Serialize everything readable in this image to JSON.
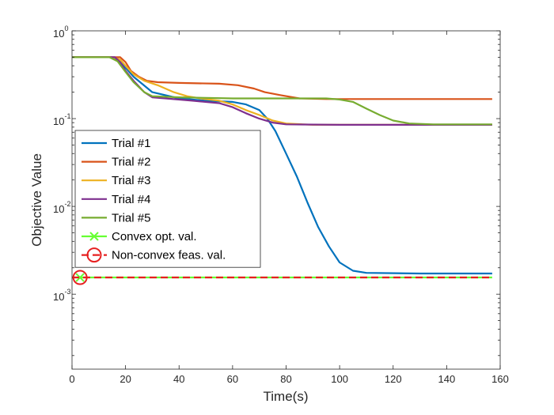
{
  "chart_data": {
    "type": "line",
    "xlabel": "Time(s)",
    "ylabel": "Objective Value",
    "xlim": [
      0,
      160
    ],
    "ylim": [
      0.00014,
      1
    ],
    "yscale": "log",
    "x_ticks": [
      0,
      20,
      40,
      60,
      80,
      100,
      120,
      140,
      160
    ],
    "y_ticks": [
      {
        "value": 0.001,
        "base": "10",
        "exp": "-3"
      },
      {
        "value": 0.01,
        "base": "10",
        "exp": "-2"
      },
      {
        "value": 0.1,
        "base": "10",
        "exp": "-1"
      },
      {
        "value": 1,
        "base": "10",
        "exp": "0"
      }
    ],
    "grid": false,
    "legend_position": "middle-left",
    "series": [
      {
        "name": "Trial #1",
        "color": "#0072BD",
        "style": "solid",
        "points": [
          [
            0,
            0.5
          ],
          [
            15,
            0.5
          ],
          [
            18,
            0.44
          ],
          [
            20,
            0.38
          ],
          [
            23,
            0.3
          ],
          [
            30,
            0.2
          ],
          [
            40,
            0.17
          ],
          [
            50,
            0.16
          ],
          [
            60,
            0.155
          ],
          [
            65,
            0.145
          ],
          [
            70,
            0.125
          ],
          [
            73,
            0.1
          ],
          [
            76,
            0.072
          ],
          [
            80,
            0.04
          ],
          [
            84,
            0.022
          ],
          [
            88,
            0.011
          ],
          [
            92,
            0.0058
          ],
          [
            96,
            0.0035
          ],
          [
            100,
            0.0023
          ],
          [
            105,
            0.00185
          ],
          [
            110,
            0.00175
          ],
          [
            130,
            0.00172
          ],
          [
            157,
            0.00172
          ]
        ]
      },
      {
        "name": "Trial #2",
        "color": "#D95319",
        "style": "solid",
        "points": [
          [
            0,
            0.5
          ],
          [
            18,
            0.5
          ],
          [
            20,
            0.44
          ],
          [
            22,
            0.35
          ],
          [
            25,
            0.3
          ],
          [
            28,
            0.27
          ],
          [
            32,
            0.26
          ],
          [
            40,
            0.255
          ],
          [
            55,
            0.25
          ],
          [
            62,
            0.24
          ],
          [
            68,
            0.22
          ],
          [
            72,
            0.2
          ],
          [
            78,
            0.185
          ],
          [
            85,
            0.17
          ],
          [
            95,
            0.167
          ],
          [
            157,
            0.167
          ]
        ]
      },
      {
        "name": "Trial #3",
        "color": "#EDB120",
        "style": "solid",
        "points": [
          [
            0,
            0.5
          ],
          [
            15,
            0.5
          ],
          [
            18,
            0.47
          ],
          [
            20,
            0.4
          ],
          [
            23,
            0.32
          ],
          [
            27,
            0.27
          ],
          [
            32,
            0.24
          ],
          [
            38,
            0.2
          ],
          [
            43,
            0.18
          ],
          [
            48,
            0.17
          ],
          [
            55,
            0.16
          ],
          [
            60,
            0.145
          ],
          [
            65,
            0.125
          ],
          [
            70,
            0.11
          ],
          [
            75,
            0.095
          ],
          [
            80,
            0.088
          ],
          [
            90,
            0.085
          ],
          [
            157,
            0.085
          ]
        ]
      },
      {
        "name": "Trial #4",
        "color": "#7E2F8E",
        "style": "solid",
        "points": [
          [
            0,
            0.5
          ],
          [
            16,
            0.5
          ],
          [
            18,
            0.44
          ],
          [
            20,
            0.35
          ],
          [
            23,
            0.27
          ],
          [
            27,
            0.2
          ],
          [
            30,
            0.175
          ],
          [
            35,
            0.17
          ],
          [
            45,
            0.16
          ],
          [
            55,
            0.15
          ],
          [
            60,
            0.135
          ],
          [
            65,
            0.115
          ],
          [
            70,
            0.1
          ],
          [
            75,
            0.09
          ],
          [
            80,
            0.086
          ],
          [
            100,
            0.085
          ],
          [
            157,
            0.085
          ]
        ]
      },
      {
        "name": "Trial #5",
        "color": "#77AC30",
        "style": "solid",
        "points": [
          [
            0,
            0.5
          ],
          [
            14,
            0.5
          ],
          [
            17,
            0.45
          ],
          [
            20,
            0.34
          ],
          [
            23,
            0.26
          ],
          [
            27,
            0.2
          ],
          [
            30,
            0.18
          ],
          [
            40,
            0.175
          ],
          [
            60,
            0.17
          ],
          [
            95,
            0.17
          ],
          [
            100,
            0.165
          ],
          [
            105,
            0.155
          ],
          [
            110,
            0.13
          ],
          [
            115,
            0.11
          ],
          [
            120,
            0.095
          ],
          [
            126,
            0.088
          ],
          [
            135,
            0.086
          ],
          [
            157,
            0.086
          ]
        ]
      },
      {
        "name": "Convex opt. val.",
        "color": "#66FF33",
        "style": "solid",
        "marker": "x",
        "marker_x": 3,
        "points": [
          [
            0,
            0.00155
          ],
          [
            157,
            0.00155
          ]
        ]
      },
      {
        "name": "Non-convex feas. val.",
        "color": "#E62020",
        "style": "dashed",
        "marker": "circle",
        "marker_x": 3,
        "points": [
          [
            0,
            0.00155
          ],
          [
            157,
            0.00155
          ]
        ]
      }
    ]
  }
}
